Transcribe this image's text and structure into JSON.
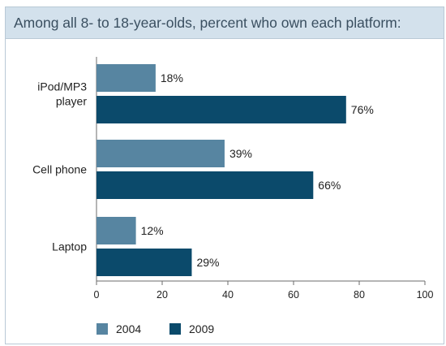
{
  "chart_data": {
    "type": "bar",
    "orientation": "horizontal",
    "title": "Among all 8- to 18-year-olds, percent who own each platform:",
    "categories": [
      [
        "iPod/MP3",
        "player"
      ],
      [
        "Cell phone"
      ],
      [
        "Laptop"
      ]
    ],
    "series": [
      {
        "name": "2004",
        "values": [
          18,
          39,
          12
        ],
        "labels": [
          "18%",
          "39%",
          "12%"
        ],
        "color": "#5785a1"
      },
      {
        "name": "2009",
        "values": [
          76,
          66,
          29
        ],
        "labels": [
          "76%",
          "66%",
          "29%"
        ],
        "color": "#0b4a6b"
      }
    ],
    "xlim": [
      0,
      100
    ],
    "xticks": [
      0,
      20,
      40,
      60,
      80,
      100
    ],
    "xlabel": "",
    "ylabel": "",
    "grid": false,
    "legend": "bottom-left"
  }
}
